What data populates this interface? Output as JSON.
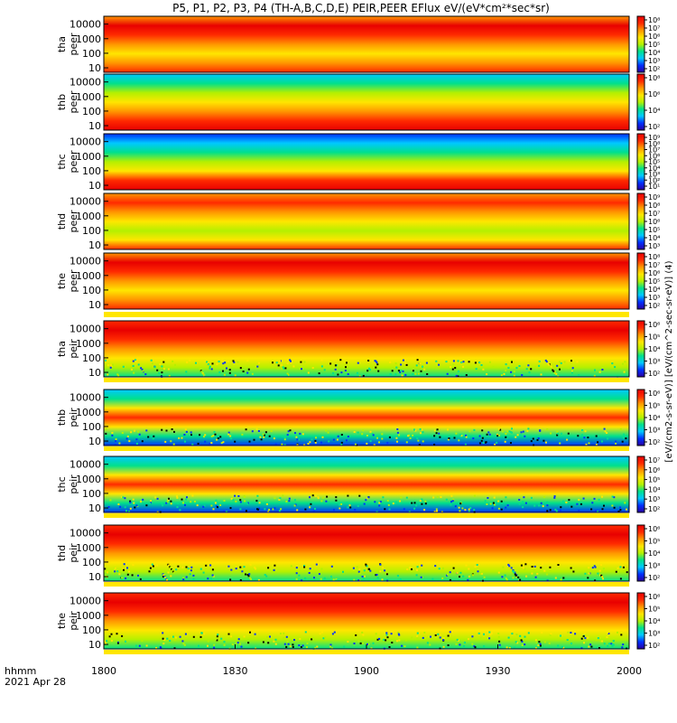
{
  "title": "P5, P1, P2, P3, P4 (TH-A,B,C,D,E) PEIR,PEER EFlux eV/(eV*cm²*sec*sr)",
  "colorbar_label": "[eV/(cm2-s-sr-eV)] [eV/(cm^2-sec-sr-eV)] (4)",
  "chart_data": {
    "type": "heatmap",
    "title": "P5, P1, P2, P3, P4 (TH-A,B,C,D,E) PEIR,PEER EFlux eV/(eV*cm²*sec*sr)",
    "x_axis": {
      "ticks": [
        "1800",
        "1830",
        "1900",
        "1930",
        "2000"
      ],
      "range_label": "hhmm",
      "date_label": "2021 Apr 28"
    },
    "y_axis": {
      "scale": "log",
      "ticks": [
        "10",
        "100",
        "1000",
        "10000"
      ]
    },
    "colormap": [
      "#2a00a0",
      "#0030ff",
      "#00c8ff",
      "#00e08c",
      "#b4f000",
      "#ffe600",
      "#ff9600",
      "#ff2a00",
      "#e80000"
    ],
    "panels": [
      {
        "label1": "tha",
        "label2": "peer",
        "cbar": [
          "10⁸",
          "10⁷",
          "10⁶",
          "10⁵",
          "10⁴",
          "10³",
          "10²"
        ]
      },
      {
        "label1": "thb",
        "label2": "peer",
        "cbar": [
          "10⁸",
          "10⁶",
          "10⁴",
          "10²"
        ]
      },
      {
        "label1": "thc",
        "label2": "peer",
        "cbar": [
          "10⁹",
          "10⁸",
          "10⁷",
          "10⁶",
          "10⁵",
          "10⁴",
          "10³",
          "10²",
          "10¹"
        ]
      },
      {
        "label1": "thd",
        "label2": "peer",
        "cbar": [
          "10⁹",
          "10⁸",
          "10⁷",
          "10⁶",
          "10⁵",
          "10⁴",
          "10³"
        ]
      },
      {
        "label1": "the",
        "label2": "peer",
        "cbar": [
          "10⁸",
          "10⁷",
          "10⁶",
          "10⁵",
          "10⁴",
          "10³",
          "10²"
        ]
      },
      {
        "label1": "tha",
        "label2": "peir",
        "cbar": [
          "10⁶",
          "10⁵",
          "10⁴",
          "10³",
          "10²"
        ]
      },
      {
        "label1": "thb",
        "label2": "peir",
        "cbar": [
          "10⁶",
          "10⁵",
          "10⁴",
          "10³",
          "10²"
        ]
      },
      {
        "label1": "thc",
        "label2": "peir",
        "cbar": [
          "10⁷",
          "10⁶",
          "10⁵",
          "10⁴",
          "10³",
          "10²"
        ]
      },
      {
        "label1": "thd",
        "label2": "peir",
        "cbar": [
          "10⁶",
          "10⁵",
          "10⁴",
          "10³",
          "10²"
        ]
      },
      {
        "label1": "the",
        "label2": "peir",
        "cbar": [
          "10⁶",
          "10⁵",
          "10⁴",
          "10³",
          "10²"
        ]
      }
    ]
  }
}
